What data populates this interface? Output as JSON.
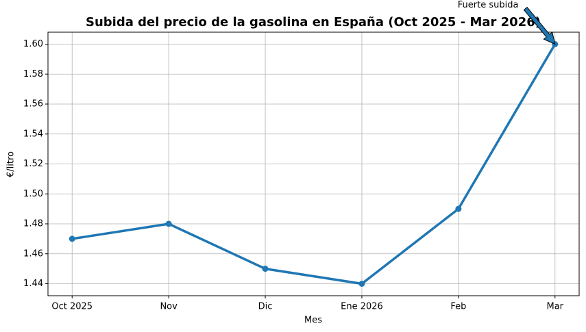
{
  "chart_data": {
    "type": "line",
    "title": "Subida del precio de la gasolina en España (Oct 2025 - Mar 2026)",
    "x_label": "Mes",
    "y_label": "€/litro",
    "categories": [
      "Oct 2025",
      "Nov",
      "Dic",
      "Ene 2026",
      "Feb",
      "Mar"
    ],
    "values": [
      1.47,
      1.48,
      1.45,
      1.44,
      1.49,
      1.6
    ],
    "color": "#1f77b4",
    "ylim": [
      1.432,
      1.608
    ],
    "yticks": [
      1.44,
      1.46,
      1.48,
      {
        "value": 1.5,
        "label": "1.50"
      },
      1.52,
      1.54,
      1.56,
      1.58,
      {
        "value": 1.6,
        "label": "1.60"
      }
    ],
    "grid": true,
    "annotation": "Fuerte subida"
  }
}
